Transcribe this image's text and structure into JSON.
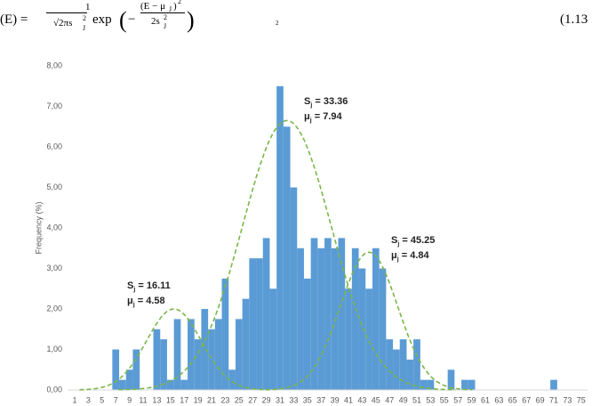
{
  "formula": {
    "lhs": "(E) =",
    "num": "1",
    "den": "√2πs",
    "den_sup": "2",
    "den_sub": "J",
    "exp": "exp",
    "inner_num": "(E − μ",
    "inner_sub": "J",
    "inner_close": ")",
    "inner_sup": "2",
    "inner_den": "2s",
    "inner_den_sup": "2",
    "inner_den_sub": "J",
    "stray": "2",
    "number": "(1.13"
  },
  "chart_data": {
    "type": "bar",
    "ylabel": "Frequency (%)",
    "x": [
      1,
      2,
      3,
      4,
      5,
      6,
      7,
      8,
      9,
      10,
      11,
      12,
      13,
      14,
      15,
      16,
      17,
      18,
      19,
      20,
      21,
      22,
      23,
      24,
      25,
      26,
      27,
      28,
      29,
      30,
      31,
      32,
      33,
      34,
      35,
      36,
      37,
      38,
      39,
      40,
      41,
      42,
      43,
      44,
      45,
      46,
      47,
      48,
      49,
      50,
      51,
      52,
      53,
      54,
      55,
      56,
      57,
      58,
      59,
      60,
      61,
      62,
      63,
      64,
      65,
      66,
      67,
      68,
      69,
      70,
      71,
      72,
      73,
      74,
      75
    ],
    "values": [
      0,
      0,
      0,
      0,
      0,
      0,
      1.0,
      0.25,
      0.5,
      1.0,
      0,
      0,
      1.5,
      1.25,
      0.25,
      1.75,
      0.25,
      1.75,
      1.25,
      2.0,
      1.5,
      1.75,
      2.75,
      0.5,
      1.75,
      2.25,
      3.25,
      3.25,
      3.75,
      2.5,
      7.5,
      6.5,
      5.0,
      3.5,
      2.75,
      3.75,
      3.5,
      3.75,
      3.5,
      3.75,
      2.5,
      3.5,
      3.0,
      2.5,
      3.5,
      3.0,
      1.25,
      1.0,
      1.25,
      0.75,
      1.25,
      0.25,
      0.25,
      0,
      0,
      0.5,
      0,
      0.25,
      0.25,
      0,
      0,
      0,
      0,
      0,
      0,
      0,
      0,
      0,
      0,
      0,
      0.25,
      0,
      0,
      0,
      0
    ],
    "color": "#5b9bd5",
    "xlim": [
      0,
      76
    ],
    "xticks": [
      1,
      3,
      5,
      7,
      9,
      11,
      13,
      15,
      17,
      19,
      21,
      23,
      25,
      27,
      29,
      31,
      33,
      35,
      37,
      39,
      41,
      43,
      45,
      47,
      49,
      51,
      53,
      55,
      57,
      59,
      61,
      63,
      65,
      67,
      69,
      71,
      73,
      75
    ],
    "ylim": [
      0,
      8
    ],
    "yticks": [
      {
        "value": 0,
        "label": "0,00"
      },
      {
        "value": 1,
        "label": "1,00"
      },
      {
        "value": 2,
        "label": "2,00"
      },
      {
        "value": 3,
        "label": "3,00"
      },
      {
        "value": 4,
        "label": "4,00"
      },
      {
        "value": 5,
        "label": "5,00"
      },
      {
        "value": 6,
        "label": "6,00"
      },
      {
        "value": 7,
        "label": "7,00"
      },
      {
        "value": 8,
        "label": "8,00"
      }
    ],
    "curves": [
      {
        "center": 15.5,
        "sd": 4.0,
        "peak": 2.0
      },
      {
        "center": 32,
        "sd": 6.5,
        "peak": 6.65
      },
      {
        "center": 44,
        "sd": 4.2,
        "peak": 3.4
      }
    ],
    "curve_color": "#7ab648",
    "annotations": [
      {
        "lines": [
          [
            "S",
            "j",
            " = 33.36"
          ],
          [
            "μ",
            "j",
            " = 7.94"
          ]
        ]
      },
      {
        "lines": [
          [
            "S",
            "j",
            " = 45.25"
          ],
          [
            "μ",
            "j",
            " = 4.84"
          ]
        ]
      },
      {
        "lines": [
          [
            "S",
            "j",
            " = 16.11"
          ],
          [
            "μ",
            "j",
            " = 4.58"
          ]
        ]
      }
    ]
  }
}
